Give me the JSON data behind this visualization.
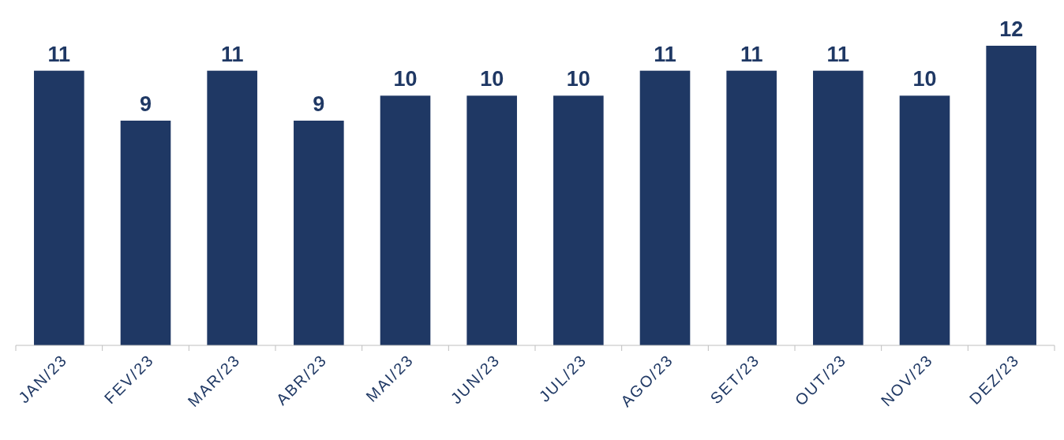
{
  "chart_data": {
    "type": "bar",
    "categories": [
      "JAN/23",
      "FEV/23",
      "MAR/23",
      "ABR/23",
      "MAI/23",
      "JUN/23",
      "JUL/23",
      "AGO/23",
      "SET/23",
      "OUT/23",
      "NOV/23",
      "DEZ/23"
    ],
    "values": [
      11,
      9,
      11,
      9,
      10,
      10,
      10,
      11,
      11,
      11,
      10,
      12
    ],
    "color": "#1f3864",
    "data_labels": true
  }
}
